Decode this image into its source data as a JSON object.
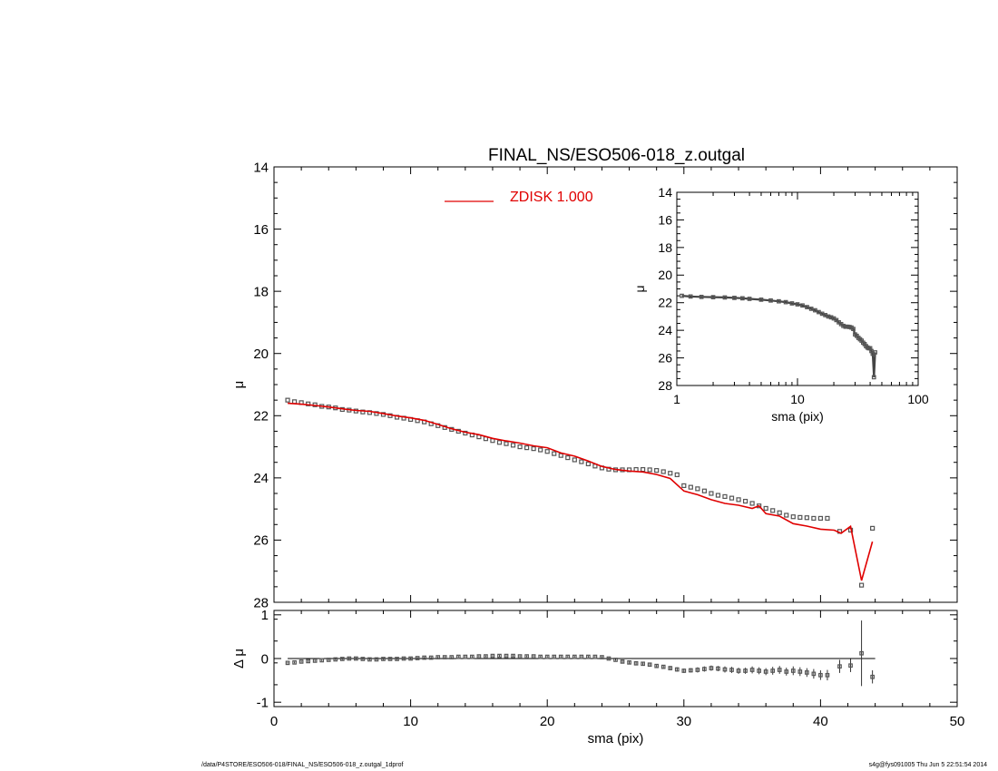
{
  "footer": {
    "path": "/data/P4STORE/ESO506-018/FINAL_NS/ESO506-018_z.outgal_1dprof",
    "stamp": "s4g@fys091005  Thu Jun  5 22:51:54 2014"
  },
  "colors": {
    "model": "#e00000",
    "data": "#555555",
    "axes": "#000000"
  },
  "chart_data": [
    {
      "id": "main",
      "type": "scatter",
      "title": "FINAL_NS/ESO506-018_z.outgal",
      "xlabel": "",
      "ylabel": "μ",
      "xlim": [
        0,
        50
      ],
      "ylim": [
        14,
        28
      ],
      "y_inverted": true,
      "xticks": [
        0,
        10,
        20,
        30,
        40,
        50
      ],
      "yticks": [
        14,
        16,
        18,
        20,
        22,
        24,
        26,
        28
      ],
      "legend": {
        "label": "ZDISK  1.000",
        "placement": "top-center"
      },
      "series": [
        {
          "name": "",
          "kind": "points",
          "x": [
            1.0,
            1.5,
            2.0,
            2.5,
            3.0,
            3.5,
            4.0,
            4.5,
            5.0,
            5.5,
            6.0,
            6.5,
            7.0,
            7.5,
            8.0,
            8.5,
            9.0,
            9.5,
            10.0,
            10.5,
            11.0,
            11.5,
            12.0,
            12.5,
            13.0,
            13.5,
            14.0,
            14.5,
            15.0,
            15.5,
            16.0,
            16.5,
            17.0,
            17.5,
            18.0,
            18.5,
            19.0,
            19.5,
            20.0,
            20.5,
            21.0,
            21.5,
            22.0,
            22.5,
            23.0,
            23.5,
            24.0,
            24.5,
            25.0,
            25.5,
            26.0,
            26.5,
            27.0,
            27.5,
            28.0,
            28.5,
            29.0,
            29.5,
            30.0,
            30.5,
            31.0,
            31.5,
            32.0,
            32.5,
            33.0,
            33.5,
            34.0,
            34.5,
            35.0,
            35.5,
            36.0,
            36.5,
            37.0,
            37.5,
            38.0,
            38.5,
            39.0,
            39.5,
            40.0,
            40.5,
            41.4,
            42.2,
            43.0,
            43.8
          ],
          "y": [
            21.5,
            21.55,
            21.58,
            21.62,
            21.65,
            21.7,
            21.72,
            21.75,
            21.8,
            21.82,
            21.85,
            21.88,
            21.9,
            21.93,
            21.96,
            22.0,
            22.05,
            22.08,
            22.12,
            22.16,
            22.2,
            22.26,
            22.32,
            22.38,
            22.44,
            22.5,
            22.56,
            22.62,
            22.68,
            22.74,
            22.8,
            22.86,
            22.9,
            22.95,
            23.0,
            23.03,
            23.06,
            23.1,
            23.15,
            23.22,
            23.28,
            23.35,
            23.42,
            23.48,
            23.55,
            23.62,
            23.68,
            23.72,
            23.74,
            23.74,
            23.74,
            23.73,
            23.73,
            23.74,
            23.76,
            23.8,
            23.85,
            23.9,
            24.25,
            24.3,
            24.35,
            24.42,
            24.5,
            24.56,
            24.6,
            24.65,
            24.7,
            24.75,
            24.82,
            24.9,
            24.98,
            25.05,
            25.12,
            25.2,
            25.25,
            25.27,
            25.28,
            25.3,
            25.3,
            25.3,
            25.72,
            25.68,
            27.45,
            25.62
          ]
        },
        {
          "name": "ZDISK  1.000",
          "kind": "line",
          "x": [
            1.0,
            2.0,
            3.0,
            4.0,
            5.0,
            6.0,
            7.0,
            8.0,
            9.0,
            10.0,
            11.0,
            12.0,
            13.0,
            14.0,
            15.0,
            16.0,
            17.0,
            18.0,
            19.0,
            20.0,
            21.0,
            22.0,
            23.0,
            24.0,
            25.0,
            26.0,
            27.0,
            28.0,
            29.0,
            30.0,
            31.0,
            32.0,
            33.0,
            34.0,
            35.0,
            35.5,
            36.0,
            37.0,
            38.0,
            39.0,
            40.0,
            41.0,
            41.5,
            42.2,
            43.0,
            43.8
          ],
          "y": [
            21.6,
            21.63,
            21.67,
            21.72,
            21.78,
            21.83,
            21.86,
            21.93,
            22.01,
            22.07,
            22.15,
            22.28,
            22.42,
            22.53,
            22.61,
            22.73,
            22.81,
            22.88,
            22.97,
            23.03,
            23.2,
            23.3,
            23.46,
            23.63,
            23.73,
            23.78,
            23.81,
            23.89,
            24.02,
            24.42,
            24.54,
            24.7,
            24.82,
            24.88,
            24.98,
            24.9,
            25.15,
            25.23,
            25.47,
            25.55,
            25.65,
            25.68,
            25.78,
            25.56,
            27.3,
            26.05
          ]
        }
      ]
    },
    {
      "id": "inset",
      "type": "scatter",
      "title": "",
      "xlabel": "sma (pix)",
      "ylabel": "μ",
      "x_scale": "log",
      "xlim": [
        1,
        100
      ],
      "ylim": [
        14,
        28
      ],
      "y_inverted": true,
      "xticks": [
        1,
        10,
        100
      ],
      "yticks": [
        14,
        16,
        18,
        20,
        22,
        24,
        26,
        28
      ],
      "series": [
        {
          "name": "",
          "kind": "points",
          "x": [
            1.1,
            1.3,
            1.6,
            2.0,
            2.5,
            3.0,
            3.5,
            4.0,
            5.0,
            6.0,
            7.0,
            8.0,
            9.0,
            10.0,
            11.0,
            12.0,
            13.0,
            14.0,
            15.0,
            16.0,
            17.0,
            18.0,
            19.0,
            20.0,
            21.0,
            22.0,
            23.0,
            24.0,
            25.0,
            26.0,
            27.0,
            28.0,
            29.0,
            30.0,
            31.0,
            32.0,
            33.0,
            34.0,
            35.0,
            36.0,
            37.0,
            38.0,
            39.0,
            40.0,
            41.0,
            42.0,
            43.0,
            44.0
          ],
          "y": [
            21.5,
            21.55,
            21.58,
            21.6,
            21.62,
            21.65,
            21.68,
            21.72,
            21.78,
            21.84,
            21.9,
            21.96,
            22.05,
            22.12,
            22.2,
            22.32,
            22.44,
            22.55,
            22.68,
            22.8,
            22.9,
            23.0,
            23.06,
            23.14,
            23.26,
            23.42,
            23.55,
            23.68,
            23.74,
            23.74,
            23.76,
            23.8,
            23.9,
            24.3,
            24.4,
            24.55,
            24.65,
            24.75,
            24.9,
            25.0,
            25.15,
            25.25,
            25.3,
            25.3,
            25.5,
            25.7,
            27.4,
            25.6
          ]
        }
      ]
    },
    {
      "id": "residual",
      "type": "scatter",
      "title": "",
      "xlabel": "sma (pix)",
      "ylabel": "Δ μ",
      "xlim": [
        0,
        50
      ],
      "ylim": [
        -1.1,
        1.1
      ],
      "xticks": [
        0,
        10,
        20,
        30,
        40,
        50
      ],
      "yticks": [
        -1,
        0,
        1
      ],
      "series": [
        {
          "name": "",
          "kind": "points",
          "x": [
            1.0,
            1.5,
            2.0,
            2.5,
            3.0,
            3.5,
            4.0,
            4.5,
            5.0,
            5.5,
            6.0,
            6.5,
            7.0,
            7.5,
            8.0,
            8.5,
            9.0,
            9.5,
            10.0,
            10.5,
            11.0,
            11.5,
            12.0,
            12.5,
            13.0,
            13.5,
            14.0,
            14.5,
            15.0,
            15.5,
            16.0,
            16.5,
            17.0,
            17.5,
            18.0,
            18.5,
            19.0,
            19.5,
            20.0,
            20.5,
            21.0,
            21.5,
            22.0,
            22.5,
            23.0,
            23.5,
            24.0,
            24.5,
            25.0,
            25.5,
            26.0,
            26.5,
            27.0,
            27.5,
            28.0,
            28.5,
            29.0,
            29.5,
            30.0,
            30.5,
            31.0,
            31.5,
            32.0,
            32.5,
            33.0,
            33.5,
            34.0,
            34.5,
            35.0,
            35.5,
            36.0,
            36.5,
            37.0,
            37.5,
            38.0,
            38.5,
            39.0,
            39.5,
            40.0,
            40.5,
            41.4,
            42.2,
            43.0,
            43.8
          ],
          "y": [
            -0.1,
            -0.09,
            -0.07,
            -0.06,
            -0.05,
            -0.04,
            -0.03,
            -0.02,
            -0.01,
            0.0,
            0.0,
            -0.01,
            -0.02,
            -0.02,
            -0.01,
            -0.01,
            -0.01,
            0.0,
            0.0,
            0.01,
            0.02,
            0.02,
            0.03,
            0.03,
            0.03,
            0.04,
            0.04,
            0.04,
            0.05,
            0.05,
            0.06,
            0.06,
            0.06,
            0.06,
            0.05,
            0.05,
            0.05,
            0.04,
            0.04,
            0.04,
            0.04,
            0.04,
            0.04,
            0.04,
            0.04,
            0.04,
            0.03,
            0.0,
            -0.03,
            -0.07,
            -0.09,
            -0.11,
            -0.12,
            -0.14,
            -0.17,
            -0.19,
            -0.22,
            -0.25,
            -0.28,
            -0.27,
            -0.26,
            -0.24,
            -0.22,
            -0.23,
            -0.25,
            -0.26,
            -0.28,
            -0.28,
            -0.26,
            -0.28,
            -0.3,
            -0.28,
            -0.26,
            -0.3,
            -0.28,
            -0.3,
            -0.32,
            -0.35,
            -0.38,
            -0.38,
            -0.18,
            -0.16,
            0.12,
            -0.42
          ],
          "yerr": [
            0.02,
            0.02,
            0.02,
            0.02,
            0.02,
            0.02,
            0.02,
            0.02,
            0.02,
            0.02,
            0.02,
            0.02,
            0.02,
            0.02,
            0.02,
            0.02,
            0.02,
            0.02,
            0.02,
            0.02,
            0.02,
            0.02,
            0.02,
            0.02,
            0.02,
            0.02,
            0.02,
            0.02,
            0.02,
            0.02,
            0.02,
            0.02,
            0.02,
            0.02,
            0.02,
            0.02,
            0.02,
            0.02,
            0.02,
            0.02,
            0.02,
            0.02,
            0.02,
            0.02,
            0.02,
            0.02,
            0.02,
            0.02,
            0.02,
            0.03,
            0.03,
            0.03,
            0.03,
            0.04,
            0.04,
            0.04,
            0.05,
            0.05,
            0.05,
            0.05,
            0.06,
            0.06,
            0.06,
            0.06,
            0.07,
            0.07,
            0.07,
            0.07,
            0.08,
            0.08,
            0.08,
            0.09,
            0.09,
            0.09,
            0.1,
            0.1,
            0.1,
            0.11,
            0.11,
            0.12,
            0.15,
            0.15,
            0.75,
            0.15
          ]
        }
      ]
    }
  ]
}
